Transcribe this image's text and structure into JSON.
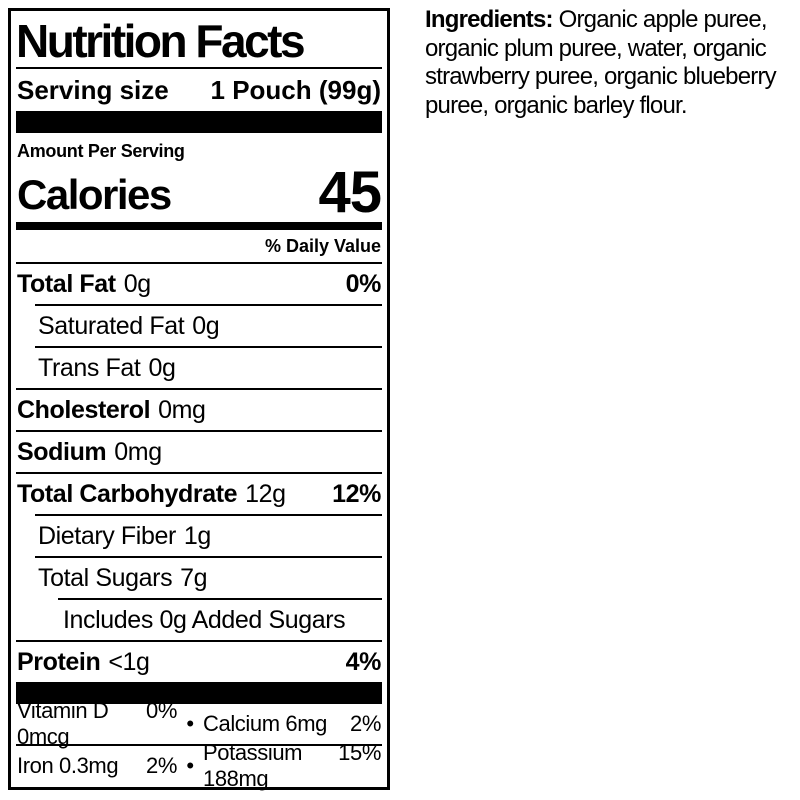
{
  "label": {
    "title": "Nutrition Facts",
    "serving": {
      "label": "Serving size",
      "value": "1 Pouch (99g)"
    },
    "amount_per_serving": "Amount Per Serving",
    "calories": {
      "label": "Calories",
      "value": "45"
    },
    "daily_value_header": "% Daily Value",
    "rows": [
      {
        "name": "Total Fat",
        "amount": "0g",
        "dv": "0%"
      },
      {
        "name": "Saturated Fat",
        "amount": "0g",
        "dv": ""
      },
      {
        "name": "Trans Fat",
        "amount": "0g",
        "dv": ""
      },
      {
        "name": "Cholesterol",
        "amount": "0mg",
        "dv": ""
      },
      {
        "name": "Sodium",
        "amount": "0mg",
        "dv": ""
      },
      {
        "name": "Total Carbohydrate",
        "amount": "12g",
        "dv": "12%"
      },
      {
        "name": "Dietary Fiber",
        "amount": "1g",
        "dv": ""
      },
      {
        "name": "Total Sugars",
        "amount": "7g",
        "dv": ""
      },
      {
        "name": "Includes 0g Added Sugars",
        "amount": "",
        "dv": ""
      },
      {
        "name": "Protein",
        "amount": "<1g",
        "dv": "4%"
      }
    ],
    "bullet": "•",
    "micronutrients": [
      {
        "left_name": "Vitamin D 0mcg",
        "left_dv": "0%",
        "right_name": "Calcium 6mg",
        "right_dv": "2%"
      },
      {
        "left_name": "Iron 0.3mg",
        "left_dv": "2%",
        "right_name": "Potassium 188mg",
        "right_dv": "15%"
      }
    ]
  },
  "ingredients": {
    "heading": "Ingredients:",
    "text": " Organic apple puree, organic plum puree, water, organic strawberry puree, organic blueberry puree, organic barley flour."
  },
  "colors": {
    "ink": "#000000",
    "background": "#ffffff"
  }
}
